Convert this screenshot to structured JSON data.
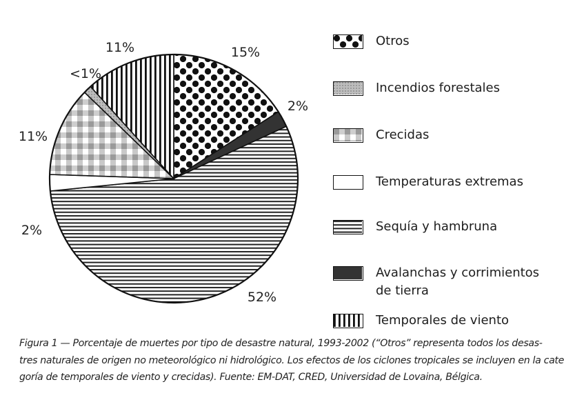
{
  "chart_data": {
    "type": "pie",
    "slices": [
      {
        "name": "Otros",
        "value": 15,
        "label": "15%",
        "pattern": "dots"
      },
      {
        "name": "Avalanchas y corrimientos de tierra",
        "value": 2,
        "label": "2%",
        "pattern": "solid"
      },
      {
        "name": "Sequía y hambruna",
        "value": 52,
        "label": "52%",
        "pattern": "hstripes"
      },
      {
        "name": "Temperaturas extremas",
        "value": 2,
        "label": "2%",
        "pattern": "white"
      },
      {
        "name": "Crecidas",
        "value": 11,
        "label": "11%",
        "pattern": "check"
      },
      {
        "name": "Incendios forestales",
        "value": 1,
        "label": "<1%",
        "pattern": "light"
      },
      {
        "name": "Temporales de viento",
        "value": 11,
        "label": "11%",
        "pattern": "vstripes"
      }
    ],
    "legend": [
      {
        "label": "Otros",
        "pattern": "dots"
      },
      {
        "label": "Incendios forestales",
        "pattern": "light"
      },
      {
        "label": "Crecidas",
        "pattern": "check"
      },
      {
        "label": "Temperaturas extremas",
        "pattern": "white"
      },
      {
        "label": "Sequía y hambruna",
        "pattern": "hstripes"
      },
      {
        "label": [
          "Avalanchas y corrimientos",
          "de tierra"
        ],
        "pattern": "solid"
      },
      {
        "label": "Temporales de viento",
        "pattern": "vstripes"
      }
    ],
    "legend_position": "right"
  },
  "caption": {
    "lines": [
      "Figura 1 — Porcentaje de muertes por tipo de desastre natural, 1993-2002 (“Otros” representa todos los desas-",
      "tres naturales de origen no meteorológico ni hidrológico. Los efectos de los ciclones tropicales se incluyen en la cate-",
      "goría de temporales de viento y crecidas). Fuente: EM-DAT, CRED, Universidad de Lovaina, Bélgica."
    ]
  },
  "colors": {
    "ink": "#1a1a1a",
    "paper": "#ffffff",
    "light_fill": "#b8b8b8",
    "check_fill": "#c9c9c9"
  }
}
